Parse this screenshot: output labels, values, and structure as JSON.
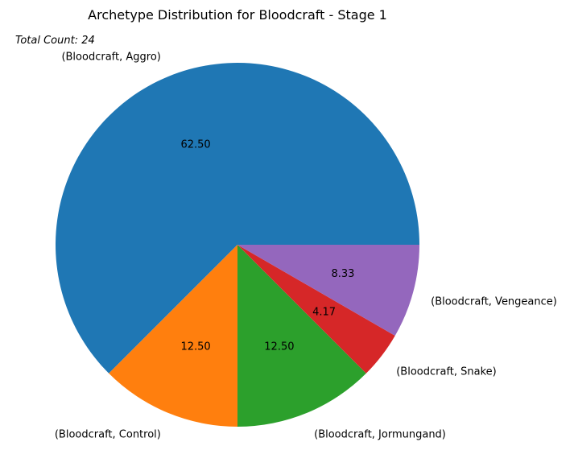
{
  "chart_data": {
    "type": "pie",
    "title": "Archetype Distribution for Bloodcraft - Stage 1",
    "annotation": "Total Count: 24",
    "categories": [
      "(Bloodcraft, Aggro)",
      "(Bloodcraft, Control)",
      "(Bloodcraft, Jormungand)",
      "(Bloodcraft, Snake)",
      "(Bloodcraft, Vengeance)"
    ],
    "values": [
      15,
      3,
      3,
      1,
      2
    ],
    "percent_labels": [
      "62.50",
      "12.50",
      "12.50",
      "4.17",
      "8.33"
    ],
    "colors": [
      "#1f77b4",
      "#ff7f0e",
      "#2ca02c",
      "#d62728",
      "#9467bd"
    ],
    "start_angle_deg": 0,
    "direction": "counterclockwise"
  }
}
